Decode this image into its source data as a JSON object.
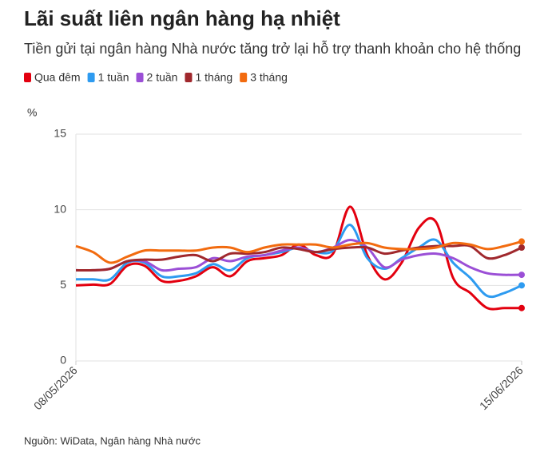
{
  "chart_data": {
    "type": "line",
    "title": "Lãi suất liên ngân hàng hạ nhiệt",
    "subtitle": "Tiền gửi tại ngân hàng Nhà nước tăng trở lại hỗ trợ thanh khoản cho hệ thống",
    "y_label": "%",
    "source": "Nguồn: WiData, Ngân hàng Nhà nước",
    "categories": [
      "08/05/2026",
      null,
      null,
      null,
      null,
      null,
      null,
      null,
      null,
      null,
      null,
      null,
      null,
      null,
      null,
      null,
      null,
      null,
      null,
      null,
      null,
      null,
      null,
      null,
      null,
      null,
      "15/06/2026"
    ],
    "series": [
      {
        "name": "Qua đêm",
        "color": "#e3000f",
        "values": [
          5.0,
          5.05,
          5.1,
          6.3,
          6.3,
          5.3,
          5.3,
          5.6,
          6.2,
          5.6,
          6.6,
          6.8,
          7.0,
          7.7,
          7.0,
          7.1,
          10.2,
          7.0,
          5.4,
          6.5,
          8.8,
          9.2,
          5.5,
          4.5,
          3.5,
          3.5,
          3.5
        ]
      },
      {
        "name": "1 tuần",
        "color": "#2e9bf0",
        "values": [
          5.4,
          5.4,
          5.4,
          6.5,
          6.5,
          5.6,
          5.6,
          5.8,
          6.4,
          6.0,
          6.8,
          7.0,
          7.2,
          7.5,
          7.2,
          7.3,
          9.0,
          6.8,
          6.1,
          6.8,
          7.5,
          8.0,
          6.5,
          5.5,
          4.3,
          4.5,
          5.0
        ]
      },
      {
        "name": "2 tuần",
        "color": "#9b4fd6",
        "values": [
          6.0,
          6.0,
          6.1,
          6.6,
          6.6,
          6.0,
          6.1,
          6.2,
          6.8,
          6.6,
          6.9,
          7.0,
          7.3,
          7.5,
          7.2,
          7.5,
          8.0,
          7.5,
          6.2,
          6.7,
          7.0,
          7.1,
          6.8,
          6.2,
          5.8,
          5.7,
          5.7
        ]
      },
      {
        "name": "1 tháng",
        "color": "#a0282d",
        "values": [
          6.0,
          6.0,
          6.1,
          6.6,
          6.7,
          6.7,
          6.9,
          7.0,
          6.6,
          7.1,
          7.1,
          7.2,
          7.5,
          7.4,
          7.2,
          7.4,
          7.5,
          7.5,
          7.1,
          7.3,
          7.5,
          7.6,
          7.6,
          7.6,
          6.8,
          7.0,
          7.5
        ]
      },
      {
        "name": "3 tháng",
        "color": "#f26b0f",
        "values": [
          7.6,
          7.2,
          6.5,
          6.9,
          7.3,
          7.3,
          7.3,
          7.3,
          7.5,
          7.5,
          7.2,
          7.5,
          7.7,
          7.7,
          7.7,
          7.5,
          7.7,
          7.8,
          7.5,
          7.4,
          7.4,
          7.5,
          7.8,
          7.7,
          7.4,
          7.6,
          7.9
        ]
      }
    ],
    "ylim": [
      0,
      15
    ],
    "yticks": [
      0,
      5,
      10,
      15
    ],
    "grid": true
  }
}
